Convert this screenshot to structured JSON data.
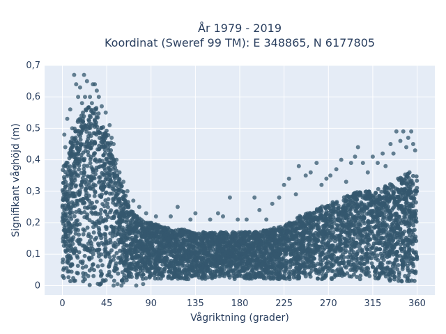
{
  "chart_data": {
    "type": "scatter",
    "title_lines": [
      "År 1979 - 2019",
      "Koordinat (Sweref 99 TM): E 348865, N 6177805"
    ],
    "xlabel": "Vågriktning (grader)",
    "ylabel": "Signifikant våghöjd (m)",
    "xlim": [
      -18,
      378
    ],
    "ylim": [
      -0.03,
      0.7
    ],
    "xticks": [
      0,
      45,
      90,
      135,
      180,
      225,
      270,
      315,
      360
    ],
    "xtick_labels": [
      "0",
      "45",
      "90",
      "135",
      "180",
      "225",
      "270",
      "315",
      "360"
    ],
    "yticks": [
      0,
      0.1,
      0.2,
      0.3,
      0.4,
      0.5,
      0.6,
      0.7
    ],
    "ytick_labels": [
      "0",
      "0,1",
      "0,2",
      "0,3",
      "0,4",
      "0,5",
      "0,6",
      "0,7"
    ],
    "grid": true,
    "marker_color": "#34586e",
    "plot_background": "#e5ecf6",
    "envelope": {
      "x": [
        0,
        5,
        10,
        15,
        20,
        25,
        30,
        35,
        40,
        45,
        50,
        55,
        60,
        65,
        70,
        80,
        90,
        100,
        110,
        120,
        135,
        150,
        165,
        180,
        195,
        210,
        225,
        240,
        255,
        270,
        285,
        300,
        315,
        330,
        340,
        350,
        355,
        360
      ],
      "ymax": [
        0.37,
        0.42,
        0.48,
        0.52,
        0.55,
        0.58,
        0.58,
        0.57,
        0.53,
        0.5,
        0.45,
        0.38,
        0.32,
        0.28,
        0.24,
        0.21,
        0.2,
        0.19,
        0.18,
        0.18,
        0.17,
        0.17,
        0.17,
        0.17,
        0.17,
        0.18,
        0.19,
        0.22,
        0.24,
        0.26,
        0.28,
        0.3,
        0.3,
        0.32,
        0.34,
        0.36,
        0.36,
        0.35
      ],
      "ymin": [
        0.01,
        0.01,
        0.01,
        0.01,
        0.01,
        0.0,
        0.0,
        0.0,
        0.0,
        0.0,
        0.0,
        0.0,
        0.01,
        0.01,
        0.02,
        0.02,
        0.02,
        0.02,
        0.02,
        0.02,
        0.02,
        0.02,
        0.02,
        0.02,
        0.02,
        0.02,
        0.02,
        0.02,
        0.02,
        0.02,
        0.02,
        0.02,
        0.02,
        0.01,
        0.01,
        0.01,
        0.01,
        0.01
      ]
    },
    "outliers": [
      [
        5,
        0.53
      ],
      [
        8,
        0.56
      ],
      [
        10,
        0.5
      ],
      [
        12,
        0.67
      ],
      [
        14,
        0.64
      ],
      [
        16,
        0.6
      ],
      [
        18,
        0.63
      ],
      [
        20,
        0.58
      ],
      [
        22,
        0.67
      ],
      [
        23,
        0.6
      ],
      [
        25,
        0.65
      ],
      [
        28,
        0.6
      ],
      [
        30,
        0.58
      ],
      [
        31,
        0.64
      ],
      [
        33,
        0.64
      ],
      [
        35,
        0.62
      ],
      [
        37,
        0.6
      ],
      [
        40,
        0.57
      ],
      [
        44,
        0.55
      ],
      [
        48,
        0.51
      ],
      [
        50,
        0.47
      ],
      [
        52,
        0.45
      ],
      [
        55,
        0.4
      ],
      [
        58,
        0.36
      ],
      [
        62,
        0.33
      ],
      [
        66,
        0.3
      ],
      [
        72,
        0.27
      ],
      [
        78,
        0.25
      ],
      [
        85,
        0.23
      ],
      [
        95,
        0.22
      ],
      [
        110,
        0.22
      ],
      [
        117,
        0.25
      ],
      [
        130,
        0.21
      ],
      [
        135,
        0.23
      ],
      [
        150,
        0.21
      ],
      [
        158,
        0.23
      ],
      [
        163,
        0.22
      ],
      [
        170,
        0.28
      ],
      [
        178,
        0.21
      ],
      [
        187,
        0.21
      ],
      [
        195,
        0.28
      ],
      [
        200,
        0.24
      ],
      [
        207,
        0.21
      ],
      [
        213,
        0.26
      ],
      [
        220,
        0.28
      ],
      [
        225,
        0.32
      ],
      [
        230,
        0.34
      ],
      [
        237,
        0.29
      ],
      [
        240,
        0.38
      ],
      [
        247,
        0.35
      ],
      [
        252,
        0.36
      ],
      [
        258,
        0.39
      ],
      [
        263,
        0.32
      ],
      [
        268,
        0.34
      ],
      [
        272,
        0.35
      ],
      [
        278,
        0.37
      ],
      [
        283,
        0.4
      ],
      [
        288,
        0.33
      ],
      [
        293,
        0.39
      ],
      [
        297,
        0.41
      ],
      [
        300,
        0.44
      ],
      [
        305,
        0.39
      ],
      [
        310,
        0.36
      ],
      [
        315,
        0.41
      ],
      [
        320,
        0.39
      ],
      [
        325,
        0.42
      ],
      [
        328,
        0.38
      ],
      [
        333,
        0.45
      ],
      [
        336,
        0.42
      ],
      [
        339,
        0.49
      ],
      [
        343,
        0.46
      ],
      [
        346,
        0.49
      ],
      [
        349,
        0.44
      ],
      [
        351,
        0.47
      ],
      [
        354,
        0.49
      ],
      [
        356,
        0.45
      ],
      [
        358,
        0.43
      ],
      [
        2,
        0.48
      ],
      [
        3,
        0.44
      ],
      [
        52,
        0.0
      ],
      [
        56,
        0.005
      ],
      [
        60,
        0.0
      ],
      [
        62,
        0.01
      ],
      [
        75,
        0.0
      ],
      [
        82,
        0.005
      ]
    ]
  }
}
